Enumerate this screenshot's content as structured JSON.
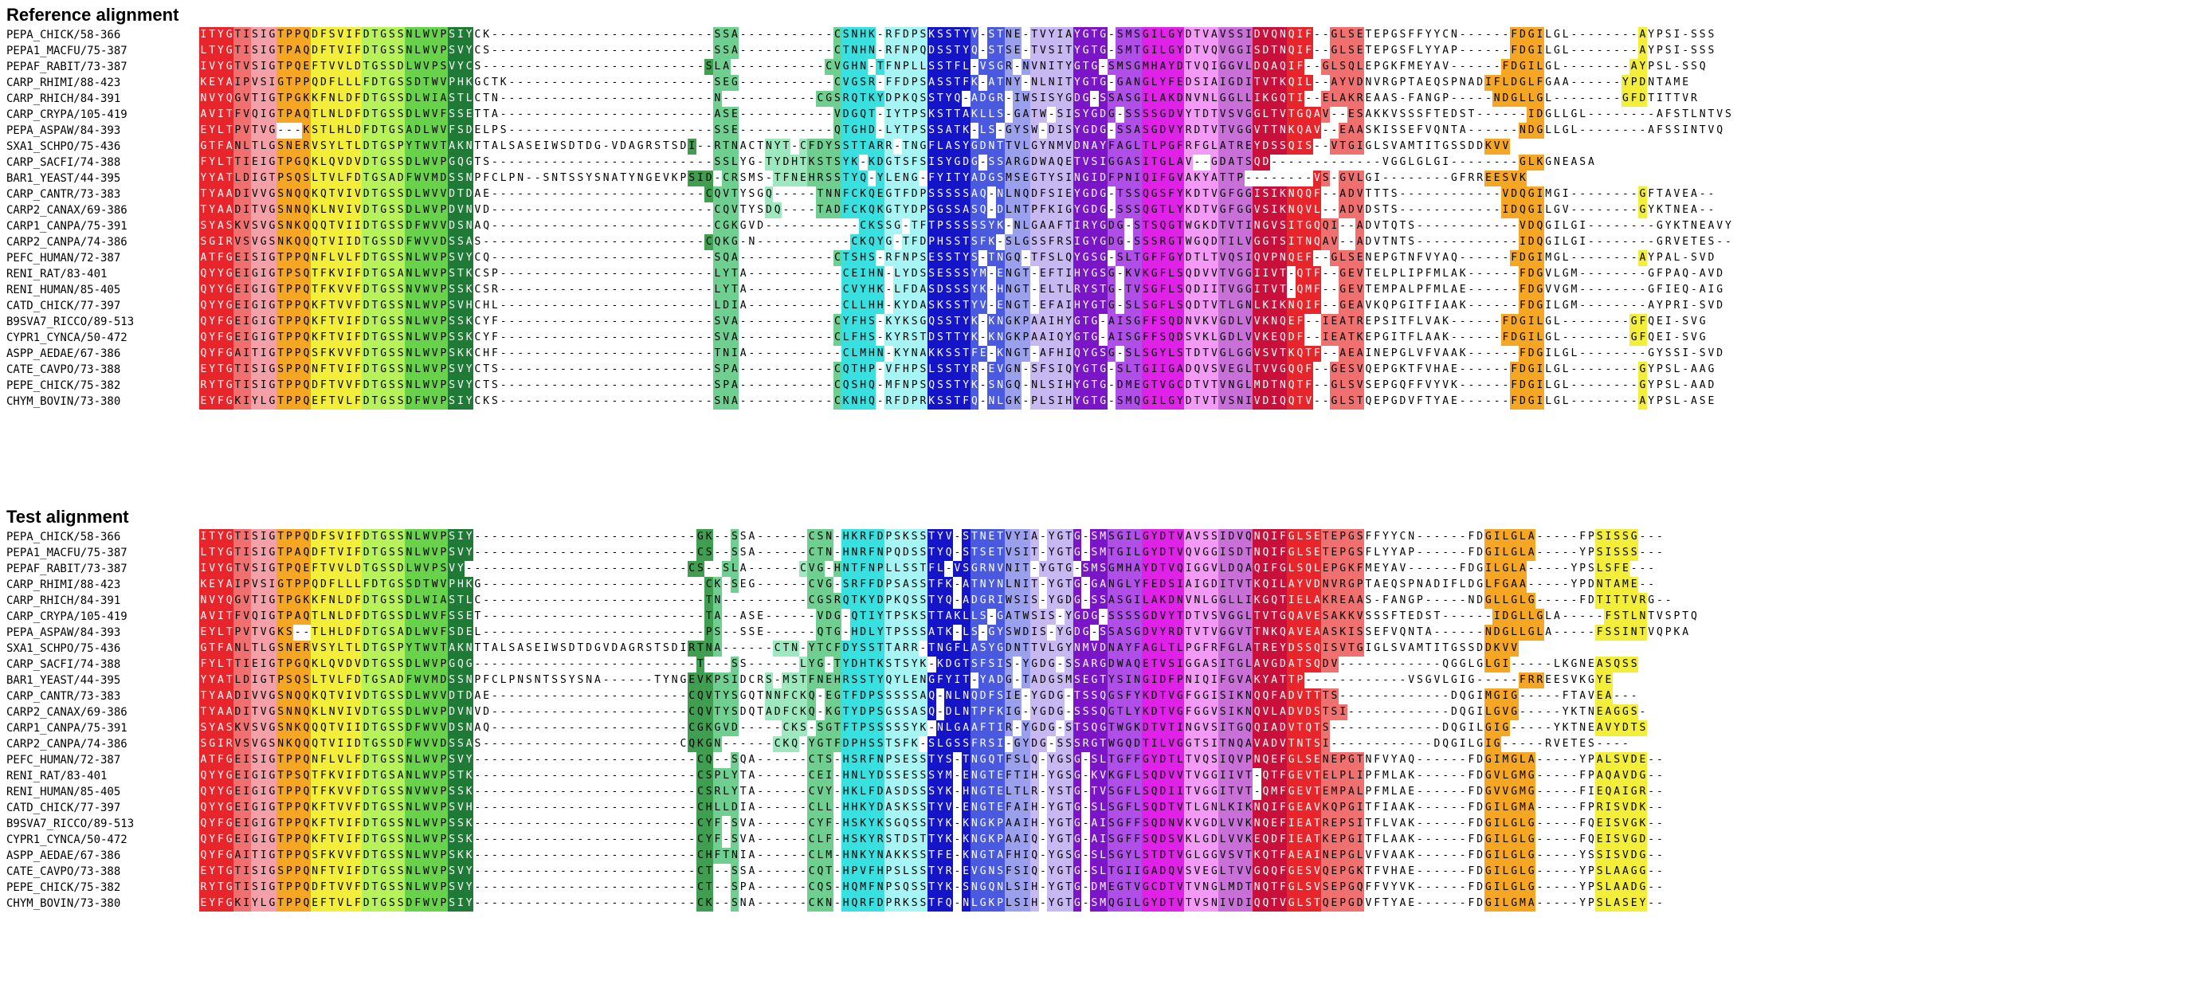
{
  "reference_title": "Reference alignment",
  "test_title": "Test alignment",
  "colors": {
    "red": "#e8252a",
    "salmon": "#f07070",
    "pink": "#f4a0a8",
    "orange": "#f5a623",
    "yellow": "#f2ee3a",
    "lime": "#b7f25a",
    "green": "#68d24a",
    "darkgreen": "#1e7a34",
    "medgreen": "#3f9e50",
    "seagreen": "#6fcf90",
    "mint": "#9ee8c0",
    "cyan": "#39e0e0",
    "lightcyan": "#a6f4f4",
    "blue": "#1414c8",
    "medblue": "#4a5ae0",
    "periwinkle": "#9aa0ec",
    "lavender": "#c8b8f2",
    "purple": "#7a16c8",
    "violet": "#b04ee8",
    "magenta": "#e022e8",
    "lightmagenta": "#f29af6",
    "orchid": "#c870d8",
    "crimson": "#c8103a",
    "white": "#ffffff"
  },
  "reference": [
    {
      "name": "PEPA_CHICK/58-366",
      "seq": "ITYGTISIGTPPQDFSVIFDTGSSNLWVPSIYCK--------------------------SSA-----------CSNHK-RFDPSKSSTYV-STNE-TVYIAYGTG-SMSGILGYDTVAVSSIDVQNQIF--GLSETEPGSFFYYCN------FDGILGL--------AYPSI-SSS"
    },
    {
      "name": "PEPA1_MACFU/75-387",
      "seq": "LTYGTISIGTPAQDFTVIFDTGSSNLWVPSVYCS--------------------------SSA-----------CTNHN-RFNPQDSSTYQ-STSE-TVSITYGTG-SMTGILGYDTVQVGGISDTNQIF--GLSETEPGSFLYYAP------FDGILGL--------AYPSI-SSS"
    },
    {
      "name": "PEPAF_RABIT/73-387",
      "seq": "IVYGTVSIGTPQEFTVVLDTGSSDLWVPSVYCS--------------------------SLA-----------CVGHN-TFNPLLSSTFL-VSGR-NVNITYGTG-SMSGMHAYDTVQIGGVLDQAQIF--GLSQLEPGKFMEYAV------FDGILGL--------AYPSL-SSQ"
    },
    {
      "name": "CARP_RHIMI/88-423",
      "seq": "KEYAIPVSIGTPPQDFLLLFDTGSSDTWVPHKGCTK------------------------SEG-----------CVGSR-FFDPSASSTFK-ATNY-NLNITYGTG-GANGLYFEDSIAIGDITVTKQIL--AYVDNVRGPTAEQSPNADIFLDGLFGAA------YPDNTAME"
    },
    {
      "name": "CARP_RHICH/84-391",
      "seq": "NVYQGVTIGTPGKKFNLDFDTGSSDLWIASTLCTN-------------------------N-----------CGSRQTKYDPKQSSTYQ-ADGR-IWSISYGDG-SSASGILAKDNVNLGGLLIKGQTI--ELAKREAAS-FANGP-----NDGLLGL--------GFDTITTVR"
    },
    {
      "name": "CARP_CRYPA/105-419",
      "seq": "AVITFVQIGTPAQTLNLDFDTGSSDLWVFSSETTA-------------------------ASE-----------VDGQT-IYTPSKSTTAKLLS-GATW-SISYGDG-SSSSGDVYTDTVSVGGLTVTGQAV--ESAKKVSSSFTEDST------IDGLLGL--------AFSTLNTVS"
    },
    {
      "name": "PEPA_ASPAW/84-393",
      "seq": "EYLTPVTVG---KSTLHLDFDTGSADLWVFSDELPS------------------------SSE-----------QTGHD-LYTPSSSATK-LS-GYSW-DISYGDG-SSASGDVYRDTVTVGGVTTNKQAV--EAASKISSEFVQNTA------NDGLLGL--------AFSSINTVQ"
    },
    {
      "name": "SXA1_SCHPO/75-436",
      "seq": "GTFANLTLGSNERVSYLTLDTGSPYTWVTAKNTTALSASEIWSDTDG-VDAGRSTSDI--RTNACTNYT-CFDYSSTTARR-TNGFLASYGDNTTVLGYNMVDNAYFAGLTLPGFRFGLATREYDSSQIS--VTGIGLSVAMTITGSSDDKVV"
    },
    {
      "name": "CARP_SACFI/74-388",
      "seq": "FYLTTIEIGTPGQKLQVDVDTGSSDLWVPGQGTS--------------------------SSLYG-TYDHTKSTSYK-KDGTSFSISYGDG-SSARGDWAQETVSIGGASITGLAV--GDATSQD-------------VGGLGLGI--------GLKGNEASA"
    },
    {
      "name": "BAR1_YEAST/44-395",
      "seq": "YYATLDIGTPSQSLTVLFDTGSADFWVMDSSNPFCLPN--SNTSSYSNATYNGEVKPSID-CRSMS-TFNEHRSSTYQ-YLENG-FYITYADGSMSEGTYSINGIDFPNIQIFGVAKYATTP--------VS-GVLGI--------GFRREESVK"
    },
    {
      "name": "CARP_CANTR/73-383",
      "seq": "TYAADIVVGSNQQKQTVIVDTGSSDLWVVDTDAE-------------------------CQVTYSGQ-----TNNFCKQEGTFDPSSSSSAQ-NLNQDFSIEYGDG-TSSQGSFYKDTVGFGGISIKNQQF--ADVTTTS------------VDQGIMGI--------GFTAVEA--"
    },
    {
      "name": "CARP2_CANAX/69-386",
      "seq": "TYAADITVGSNNQKLNVIVDTGSSDLWVPDVNVD--------------------------CQVTYSDQ----TADFCKQKGTYDPSGSSASQ-DLNTPFKIGYGDG-SSSQGTLYKDTVGFGGVSIKNQVL--ADVDSTS------------IDQGILGV--------GYKTNEA--"
    },
    {
      "name": "CARP1_CANPA/75-391",
      "seq": "SYASKVSVGSNKQQQTVIIDTGSSDFWVVDSNAQ--------------------------CGKGVD-----------CKSSG-TFTPSSSSSYK-NLGAAFTIRYGDG-STSQGTWGKDTVTINGVSITGQQI--ADVTQTS------------VDQGILGI--------GYKTNEAVY"
    },
    {
      "name": "CARP2_CANPA/74-386",
      "seq": "SGIRVSVGSNKQQQTVIIDTGSSDFWVVDSSAS--------------------------CQKG-N-----------CKQYG-TFDPHSSTSFK-SLGSSFRSIGYGDG-SSSRGTWGQDTILVGGTSITNQAV--ADVTNTS------------IDQGILGI--------GRVETES--"
    },
    {
      "name": "PEFC_HUMAN/72-387",
      "seq": "ATFGEISIGTPPQNFLVLFDTGSSNLWVPSVYCQ--------------------------SQA-----------CTSHS-RFNPSESSTYS-TNGQ-TFSLQYGSG-SLTGFFGYDTLTVQSIQVPNQEF--GLSENEPGTNFVYAQ------FDGIMGL--------AYPAL-SVD"
    },
    {
      "name": "RENI_RAT/83-401",
      "seq": "QYYGEIGIGTPSQTFKVIFDTGSANLWVPSTKCSP-------------------------LYTA-----------CEIHN-LYDSSESSSYM-ENGT-EFTIHYGSG-KVKGFLSQDVVTVGGIIVT-QTF--GEVTELPLIPFMLAK------FDGVLGM--------GFPAQ-AVD"
    },
    {
      "name": "RENI_HUMAN/85-405",
      "seq": "QYYGEIGIGTPPQTFKVVFDTGSSNVWVPSSKCSR-------------------------LYTA-----------CVYHK-LFDASDSSSYK-HNGT-ELTLRYSTG-TVSGFLSQDIITVGGITVT-QMF--GEVTEMPALPFMLAE------FDGVVGM--------GFIEQ-AIG"
    },
    {
      "name": "CATD_CHICK/77-397",
      "seq": "QYYGEIGIGTPPQKFTVVFDTGSSNLWVPSVHCHL-------------------------LDIA-----------CLLHH-KYDASKSSTYV-ENGT-EFAIHYGTG-SLSGFLSQDTVTLGNLKIKNQIF--GEAVKQPGITFIAAK------FDGILGM--------AYPRI-SVD"
    },
    {
      "name": "B9SVA7_RICCO/89-513",
      "seq": "QYFGEIGIGTPPQKFTVIFDTGSSNLWVPSSKCYF-------------------------SVA-----------CYFHS-KYKSGQSSTYK-KNGKPAAIHYGTG-AISGFFSQDNVKVGDLVVKNQEF--IEATREPSITFLVAK------FDGILGL--------GFQEI-SVG"
    },
    {
      "name": "CYPR1_CYNCA/50-472",
      "seq": "QYFGEIGIGTPPQKFTVIFDTGSSNLWVPSSKCYF-------------------------SVA-----------CLFHS-KYRSTDSTTYK-KNGKPAAIQYGTG-AISGFFSQDSVKLGDLVVKEQDF--IEATKEPGITFLAAK------FDGILGL--------GFQEI-SVG"
    },
    {
      "name": "ASPP_AEDAE/67-386",
      "seq": "QYFGAITIGTPPQSFKVVFDTGSSNLWVPSKKCHF-------------------------TNIA-----------CLMHN-KYNAKKSSTFE-KNGT-AFHIQYGSG-SLSGYLSTDTVGLGGVSVTKQTF--AEAINEPGLVFVAAK------FDGILGL--------GYSSI-SVD"
    },
    {
      "name": "CATE_CAVPO/73-388",
      "seq": "EYTGTISIGSPPQNFTVIFDTGSSNLWVPSVYCTS-------------------------SPA-----------CQTHP-VFHPSLSSTYR-EVGN-SFSIQYGTG-SLTGIIGADQVSVEGLTVVGQQF--GESVQEPGKTFVHAE------FDGILGL--------GYPSL-AAG"
    },
    {
      "name": "PEPE_CHICK/75-382",
      "seq": "RYTGTISIGTPPQDFTVVFDTGSSNLWVPSVYCTS-------------------------SPA-----------CQSHQ-MFNPSQSSTYK-SNGQ-NLSIHYGTG-DMEGTVGCDTVTVNGLMDTNQTF--GLSVSEPGQFFVYVK------FDGILGL--------GYPSL-AAD"
    },
    {
      "name": "CHYM_BOVIN/73-380",
      "seq": "EYFGKIYLGTPPQEFTVLFDTGSSDFWVPSIYCKS-------------------------SNA-----------CKNHQ-RFDPRKSSTFQ-NLGK-PLSIHYGTG-SMQGILGYDTVTVSNIVDIQQTV--GLSTQEPGDVFTYAE------FDGILGL--------AYPSL-ASE"
    }
  ],
  "test": [
    {
      "name": "PEPA_CHICK/58-366",
      "seq": "ITYGTISIGTPPQDFSVIFDTGSSNLWVPSIY--------------------------GK--SSA------CSN-HKRFDPSKSSTYV-STNETVYIA-YGTG-SMSGILGYDTVAVSSIDVQNQIFGLSETEPGSFFYYCN------FDGILGLA-----FPSISSG---"
    },
    {
      "name": "PEPA1_MACFU/75-387",
      "seq": "LTYGTISIGTPAQDFTVIFDTGSSNLWVPSVY--------------------------CS--SSA------CTN-HNRFNPQDSSTYQ-STSETVSIT-YGTG-SMTGILGYDTVQVGGISDTNQIFGLSETEPGSFLYYAP------FDGILGLA-----YPSISSS---"
    },
    {
      "name": "PEPAF_RABIT/73-387",
      "seq": "IVYGTVSIGTPQEFTVVLDTGSSDLWVPSVY--------------------------CS--SLA------CVG-HNTFNPLLSSTFL-VSGRNVNIT-YGTG-SMSGMHAYDTVQIGGVLDQAQIFGLSQLEPGKFMEYAV------FDGILGLA-----YPSLSFE---"
    },
    {
      "name": "CARP_RHIMI/88-423",
      "seq": "KEYAIPVSIGTPPQDFLLLFDTGSSDTWVPHKG--------------------------CK-SEG------CVG-SRFFDPSASSTFK-ATNYNLNIT-YGTG-GANGLYFEDSIAIGDITVTKQILAYVDNVRGPTAEQSPNADIFLDGLFGAA-----YPDNTAME--"
    },
    {
      "name": "CARP_RHICH/84-391",
      "seq": "NVYQGVTIGTPGKKFNLDFDTGSSDLWIASTLC--------------------------TN----------CGSRQTKYDPKQSSTYQ-ADGRIWSIS-YGDG-SSASGILAKDNVNLGGLLIKGQTIELAKREAAS-FANGP-----NDGLLGLG-----FDTITTVRG--"
    },
    {
      "name": "CARP_CRYPA/105-419",
      "seq": "AVITFVQIGTPAQTLNLDFDTGSSDLWVFSSET--------------------------TA--ASE------VDG-QTIYTPSKSTTAKLLS-GATWSIS-YGDG-SSSSGDVYTDTVSVGGLTVTGQAVESAKKVSSSFTEDST------IDGLLGLA-----FSTLNTVSPTQ"
    },
    {
      "name": "PEPA_ASPAW/84-393",
      "seq": "EYLTPVTVGKS--TLHLDFDTGSADLWVFSDEL--------------------------PS--SSE------QTG-HDLYTPSSSATK-LS-GYSWDIS-YGDG-SSASGDVYRDTVTVGGVTTNKQAVEAASKISSEFVQNTA------NDGLLGLA-----FSSINTVQPKA"
    },
    {
      "name": "SXA1_SCHPO/75-436",
      "seq": "GTFANLTLGSNERVSYLTLDTGSPYTWVTAKNTTALSASEIWSDTDGVDAGRSTSDIRTNA------CTN-YTCFDYSSTTARR-TNGFLASYGDNTTVLGYNMVDNAYFAGLTLPGFRFGLATREYDSSQISVTGIGLSVAMTITGSSDDKVV"
    },
    {
      "name": "CARP_SACFI/74-388",
      "seq": "FYLTTIEIGTPGQKLQVDVDTGSSDLWVPGQG--------------------------T---SS------LYG-TYDHTKSTSYK-KDGTSFSIS-YGDG-SSARGDWAQETVSIGGASITGLAVGDATSQDV------------QGGLGLGI-----LKGNEASQSS"
    },
    {
      "name": "BAR1_YEAST/44-395",
      "seq": "YYATLDIGTPSQSLTVLFDTGSADFWVMDSSNPFCLPNSNTSSYSNA------TYNGEVKPSIDCRS-MSTFNEHRSSTYQYLENGFYIT-YADG-TADGSMSEGTYSINGIDFPNIQIFGVAKYATTP------------VSGVLGIG-----FRREESVKGYE"
    },
    {
      "name": "CARP_CANTR/73-383",
      "seq": "TYAADIVVGSNQQKQTVIVDTGSSDLWVVDTDAE-----------------------CQVTYSGQTNNFCKQ-EGTFDPSSSSSAQ-NLNQDFSIE-YGDG-TSSQGSFYKDTVGFGGISIKNQQFADVTTTS-------------DQGIMGIG-----FTAVEA---"
    },
    {
      "name": "CARP2_CANAX/69-386",
      "seq": "TYAADITVGSNNQKLNVIVDTGSSDLWVPDVNVD-----------------------CQVTYSDQTADFCKQ-KGTYDPSGSSASQ-DLNTPFKIG-YGDG-SSSQGTLYKDTVGFGGVSIKNQVLADVDSTSI------------DQGILGVG-----YKTNEAGGS-"
    },
    {
      "name": "CARP1_CANPA/75-391",
      "seq": "SYASKVSVGSNKQQQTVIIDTGSSDFWVVDSNAQ-----------------------CGKGVD-----CKS-SGTFTPSSSSSYK-NLGAAFTIR-YGDG-STSQGTWGKDTVTINGVSITGQQIADVTQTS-------------DQGILGIG-----YKTNEAVYDTS"
    },
    {
      "name": "CARP2_CANPA/74-386",
      "seq": "SGIRVSVGSNKQQQTVIIDTGSSDFWVVDSSAS-----------------------CQKGN------CKQ-YGTFDPHSSTSFK-SLGSSFRSI-GYDG-SSSRGTWGQDTILVGGTSITNQAVADVTNTSI------------DQGILGIG-----RVETES----"
    },
    {
      "name": "PEFC_HUMAN/72-387",
      "seq": "ATFGEISIGTPPQNFLVLFDTGSSNLWVPSVY--------------------------CQ--SQA------CTS-HSRFNPSESSTYS-TNGQTFSLQ-YGSG-SLTGFFGYDTLTVQSIQVPNQEFGLSENEPGTNFVYAQ------FDGIMGLA-----YPALSVDE--"
    },
    {
      "name": "RENI_RAT/83-401",
      "seq": "QYYGEIGIGTPSQTFKVIFDTGSANLWVPSTK--------------------------CSPLYTA------CEI-HNLYDSSESSSYM-ENGTEFTIH-YGSG-KVKGFLSQDVVTVGGIIVT-QTFGEVTELPLIPFMLAK------FDGVLGMG-----FPAQAVDG--"
    },
    {
      "name": "RENI_HUMAN/85-405",
      "seq": "QYYGEIGIGTPPQTFKVVFDTGSSNVWVPSSK--------------------------CSRLYTA------CVY-HKLFDASDSSSYK-HNGTELTLR-YSTG-TVSGFLSQDIITVGGITVT-QMFGEVTEMPALPFMLAE------FDGVVGMG-----FIEQAIGR--"
    },
    {
      "name": "CATD_CHICK/77-397",
      "seq": "QYYGEIGIGTPPQKFTVVFDTGSSNLWVPSVH--------------------------CHLLDIA------CLL-HHKYDASKSSTYV-ENGTEFAIH-YGTG-SLSGFLSQDTVTLGNLKIKNQIFGEAVKQPGITFIAAK------FDGILGMA-----FPRISVDK--"
    },
    {
      "name": "B9SVA7_RICCO/89-513",
      "seq": "QYFGEIGIGTPPQKFTVIFDTGSSNLWVPSSK--------------------------CYF-SVA------CYF-HSKYKSGQSSTYK-KNGKPAAIH-YGTG-AISGFFSQDNVKVGDLVVKNQEFIEATREPSITFLVAK------FDGILGLG-----FQEISVGK--"
    },
    {
      "name": "CYPR1_CYNCA/50-472",
      "seq": "QYFGEIGIGTPPQKFTVIFDTGSSNLWVPSSK--------------------------CYF-SVA------CLF-HSKYRSTDSTTYK-KNGKPAAIQ-YGTG-AISGFFSQDSVKLGDLVVKEQDFIEATKEPGITFLAAK------FDGILGLG-----FQEISVGD--"
    },
    {
      "name": "ASPP_AEDAE/67-386",
      "seq": "QYFGAITIGTPPQSFKVVFDTGSSNLWVPSKK--------------------------CHFTNIA------CLM-HNKYNAKKSSTFE-KNGTAFHIQ-YGSG-SLSGYLSTDTVGLGGVSVTKQTFAEAINEPGLVFVAAK------FDGILGLG-----YSSISVDG--"
    },
    {
      "name": "CATE_CAVPO/73-388",
      "seq": "EYTGTISIGSPPQNFTVIFDTGSSNLWVPSVY--------------------------CT--SSA------CQT-HPVFHPSLSSTYR-EVGNSFSIQ-YGTG-SLTGIIGADQVSVEGLTVVGQQFGESVQEPGKTFVHAE------FDGILGLG-----YPSLAAGG--"
    },
    {
      "name": "PEPE_CHICK/75-382",
      "seq": "RYTGTISIGTPPQDFTVVFDTGSSNLWVPSVY--------------------------CT--SPA------CQS-HQMFNPSQSSTYK-SNGQNLSIH-YGTG-DMEGTVGCDTVTVNGLMDTNQTFGLSVSEPGQFFVYVK------FDGILGLG-----YPSLAADG--"
    },
    {
      "name": "CHYM_BOVIN/73-380",
      "seq": "EYFGKIYLGTPPQEFTVLFDTGSSDFWVPSIY--------------------------CK--SNA------CKN-HQRFDPRKSSTFQ-NLGKPLSIH-YGTG-SMQGILGYDTVTVSNIVDIQQTVGLSTQEPGDVFTYAE------FDGILGMA-----YPSLASEY--"
    }
  ]
}
